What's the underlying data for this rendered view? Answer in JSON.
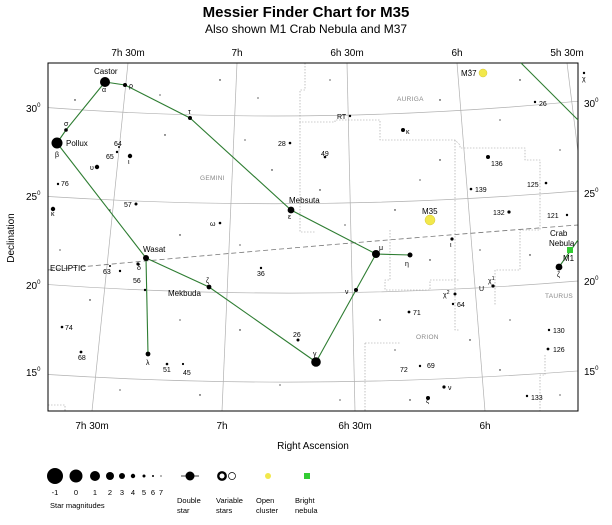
{
  "title": "Messier Finder Chart for M35",
  "subtitle": "Also shown M1 Crab Nebula and M37",
  "axes": {
    "ra_label": "Right Ascension",
    "dec_label": "Declination",
    "ra_top": [
      "7h 30m",
      "7h",
      "6h 30m",
      "6h",
      "5h 30m"
    ],
    "ra_bottom": [
      "7h 30m",
      "7h",
      "6h 30m",
      "6h"
    ],
    "dec": [
      {
        "deg": "30",
        "sup": "0"
      },
      {
        "deg": "25",
        "sup": "0"
      },
      {
        "deg": "20",
        "sup": "0"
      },
      {
        "deg": "15",
        "sup": "0"
      }
    ]
  },
  "constellations": [
    "AURIGA",
    "GEMINI",
    "ORION",
    "TAURUS"
  ],
  "ecliptic_label": "ECLIPTIC",
  "named_stars": [
    "Castor",
    "Pollux",
    "Mebsuta",
    "Wasat",
    "Mekbuda"
  ],
  "objects": {
    "m35": "M35",
    "m37": "M37",
    "m1": "M1",
    "crab": "Crab",
    "nebula": "Nebula"
  },
  "star_labels": {
    "alpha": "α",
    "beta": "β",
    "rho": "ρ",
    "sigma": "σ",
    "tau": "τ",
    "upsilon": "υ",
    "iota": "ι",
    "kappa": "κ",
    "epsilon": "ε",
    "omega": "ω",
    "delta": "δ",
    "lambda": "λ",
    "zeta": "ζ",
    "gamma": "γ",
    "mu": "μ",
    "eta": "η",
    "nu": "ν",
    "kappa_aur": "κ",
    "chi": "χ",
    "chi1": "χ",
    "chi1_sup": "1",
    "chi2": "χ",
    "chi2_sup": "2",
    "zeta_tau": "ζ",
    "nu_ori": "ν",
    "xi_ori": "ξ",
    "u_ori": "U",
    "iota_tau": "ι",
    "n64": "64",
    "n65": "65",
    "n76": "76",
    "n57": "57",
    "n63": "63",
    "n56": "56",
    "n74": "74",
    "n68": "68",
    "n51": "51",
    "n45": "45",
    "n36": "36",
    "n26": "26",
    "n28": "28",
    "n49": "49",
    "rt": "RT",
    "n26aur": "26",
    "n136": "136",
    "n125": "125",
    "n139": "139",
    "n132": "132",
    "n121": "121",
    "n64ori": "64",
    "n71": "71",
    "n72": "72",
    "n69": "69",
    "n130": "130",
    "n126": "126",
    "n133": "133"
  },
  "legend": {
    "magnitudes": [
      "-1",
      "0",
      "1",
      "2",
      "3",
      "4",
      "5",
      "6",
      "7"
    ],
    "magnitudes_caption": "Star magnitudes",
    "double_star": [
      "Double",
      "star"
    ],
    "variable_stars": [
      "Variable",
      "stars"
    ],
    "open_cluster": [
      "Open",
      "cluster"
    ],
    "bright_nebula": [
      "Bright",
      "nebula"
    ]
  },
  "colors": {
    "constellation_line": "#2e7d32",
    "open_cluster": "#f2e84b",
    "bright_nebula": "#33cc33",
    "grid": "#b0b0b0",
    "boundary": "#999999"
  }
}
